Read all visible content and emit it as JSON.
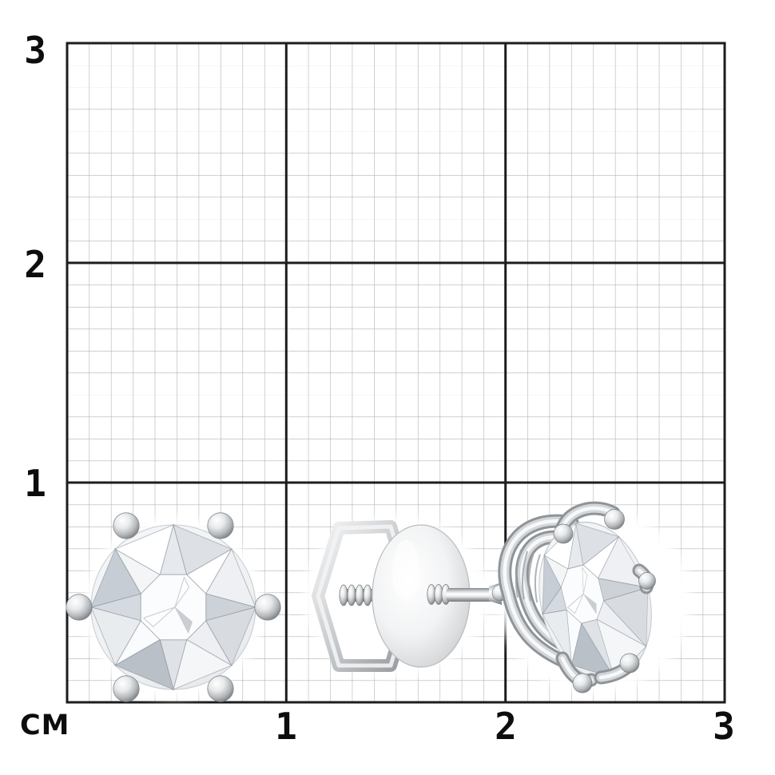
{
  "measure": {
    "unit_label": "СМ",
    "left_axis_labels": [
      "3",
      "2",
      "1"
    ],
    "bottom_axis_labels": [
      "1",
      "2",
      "3"
    ]
  },
  "grid": {
    "minor_color": "#b3b3b3",
    "major_color": "#1d1d1d",
    "background": "#ffffff",
    "minor_cells_per_major": 10,
    "major_cell_cm": 1,
    "span_cm": 3
  },
  "objects": [
    {
      "name": "diamond-stud-earring-front",
      "kind": "round diamond stud, six prong balls, front view"
    },
    {
      "name": "screw-back-clasp",
      "kind": "hex screw-back clasp with dome disc and threaded post"
    },
    {
      "name": "diamond-stud-earring-side",
      "kind": "round diamond stud in claw setting, side view"
    }
  ],
  "render": {
    "metal_light": "#f7f8f9",
    "metal_mid": "#c9ccce",
    "metal_dark": "#84888c",
    "diamond_base": "#eef0f3",
    "facet_palette_a": [
      "#eef0f3",
      "#dde1e6",
      "#ffffff",
      "#c7cdd4",
      "#e9ecef",
      "#b9c0c8",
      "#f5f6f8",
      "#d8dce1"
    ],
    "facet_palette_b": [
      "#ffffff",
      "#e6e9ed",
      "#f3f5f7",
      "#d5dae0",
      "#fafbfc",
      "#dfe3e8",
      "#edeff2",
      "#cdd2d8"
    ]
  }
}
